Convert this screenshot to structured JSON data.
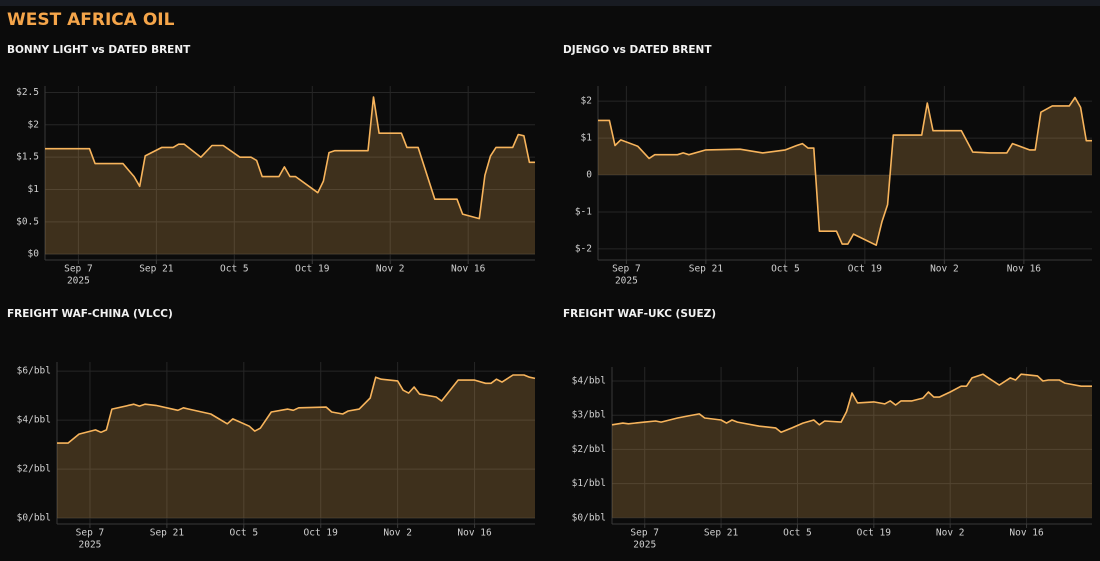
{
  "header": {
    "title": "WEST AFRICA OIL"
  },
  "chart_data": [
    {
      "type": "area",
      "title": "BONNY LIGHT vs DATED BRENT",
      "color": "#f7b45c",
      "grid": true,
      "x": [
        "2025-09-01",
        "2025-09-09",
        "2025-09-10",
        "2025-09-15",
        "2025-09-16",
        "2025-09-17",
        "2025-09-18",
        "2025-09-19",
        "2025-09-22",
        "2025-09-24",
        "2025-09-25",
        "2025-09-26",
        "2025-09-29",
        "2025-10-01",
        "2025-10-03",
        "2025-10-06",
        "2025-10-08",
        "2025-10-09",
        "2025-10-10",
        "2025-10-13",
        "2025-10-14",
        "2025-10-15",
        "2025-10-16",
        "2025-10-20",
        "2025-10-21",
        "2025-10-22",
        "2025-10-23",
        "2025-10-29",
        "2025-10-30",
        "2025-10-31",
        "2025-11-04",
        "2025-11-05",
        "2025-11-07",
        "2025-11-10",
        "2025-11-14",
        "2025-11-15",
        "2025-11-18",
        "2025-11-19",
        "2025-11-20",
        "2025-11-21",
        "2025-11-24",
        "2025-11-25",
        "2025-11-26",
        "2025-11-27",
        "2025-11-28"
      ],
      "values": [
        1.63,
        1.63,
        1.4,
        1.4,
        1.3,
        1.2,
        1.05,
        1.52,
        1.65,
        1.65,
        1.7,
        1.7,
        1.5,
        1.68,
        1.68,
        1.5,
        1.5,
        1.45,
        1.2,
        1.2,
        1.35,
        1.2,
        1.2,
        0.95,
        1.13,
        1.57,
        1.6,
        1.6,
        2.43,
        1.87,
        1.87,
        1.65,
        1.65,
        0.85,
        0.85,
        0.62,
        0.55,
        1.22,
        1.52,
        1.65,
        1.65,
        1.85,
        1.83,
        1.42,
        1.42
      ],
      "xlim": [
        "2025-09-01",
        "2025-11-28"
      ],
      "xticks": [
        {
          "value": "2025-09-07",
          "label": "Sep 7",
          "year": "2025"
        },
        {
          "value": "2025-09-21",
          "label": "Sep 21"
        },
        {
          "value": "2025-10-05",
          "label": "Oct 5"
        },
        {
          "value": "2025-10-19",
          "label": "Oct 19"
        },
        {
          "value": "2025-11-02",
          "label": "Nov 2"
        },
        {
          "value": "2025-11-16",
          "label": "Nov 16"
        }
      ],
      "ylim": [
        -0.09,
        2.6
      ],
      "yticks": [
        {
          "value": 0,
          "label": "$0"
        },
        {
          "value": 0.5,
          "label": "$0.5"
        },
        {
          "value": 1,
          "label": "$1"
        },
        {
          "value": 1.5,
          "label": "$1.5"
        },
        {
          "value": 2,
          "label": "$2"
        },
        {
          "value": 2.5,
          "label": "$2.5"
        }
      ]
    },
    {
      "type": "area",
      "title": "DJENGO vs DATED BRENT",
      "color": "#f7b45c",
      "grid": true,
      "x": [
        "2025-09-02",
        "2025-09-04",
        "2025-09-05",
        "2025-09-06",
        "2025-09-09",
        "2025-09-11",
        "2025-09-12",
        "2025-09-16",
        "2025-09-17",
        "2025-09-18",
        "2025-09-21",
        "2025-09-27",
        "2025-10-01",
        "2025-10-05",
        "2025-10-07",
        "2025-10-08",
        "2025-10-09",
        "2025-10-10",
        "2025-10-11",
        "2025-10-14",
        "2025-10-15",
        "2025-10-16",
        "2025-10-17",
        "2025-10-21",
        "2025-10-22",
        "2025-10-23",
        "2025-10-24",
        "2025-10-29",
        "2025-10-30",
        "2025-10-31",
        "2025-11-05",
        "2025-11-07",
        "2025-11-10",
        "2025-11-13",
        "2025-11-14",
        "2025-11-17",
        "2025-11-18",
        "2025-11-19",
        "2025-11-21",
        "2025-11-24",
        "2025-11-25",
        "2025-11-26",
        "2025-11-27",
        "2025-11-28"
      ],
      "values": [
        1.48,
        1.48,
        0.8,
        0.95,
        0.78,
        0.45,
        0.55,
        0.55,
        0.6,
        0.55,
        0.68,
        0.7,
        0.6,
        0.68,
        0.8,
        0.85,
        0.73,
        0.73,
        -1.52,
        -1.52,
        -1.87,
        -1.87,
        -1.6,
        -1.9,
        -1.27,
        -0.8,
        1.08,
        1.08,
        1.95,
        1.2,
        1.2,
        0.62,
        0.6,
        0.6,
        0.85,
        0.68,
        0.68,
        1.7,
        1.87,
        1.87,
        2.1,
        1.83,
        0.93,
        0.93
      ],
      "xlim": [
        "2025-09-02",
        "2025-11-28"
      ],
      "xticks": [
        {
          "value": "2025-09-07",
          "label": "Sep 7",
          "year": "2025"
        },
        {
          "value": "2025-09-21",
          "label": "Sep 21"
        },
        {
          "value": "2025-10-05",
          "label": "Oct 5"
        },
        {
          "value": "2025-10-19",
          "label": "Oct 19"
        },
        {
          "value": "2025-11-02",
          "label": "Nov 2"
        },
        {
          "value": "2025-11-16",
          "label": "Nov 16"
        }
      ],
      "ylim": [
        -2.3,
        2.41
      ],
      "yticks": [
        {
          "value": -2,
          "label": "$-2"
        },
        {
          "value": -1,
          "label": "$-1"
        },
        0,
        {
          "value": 1,
          "label": "$1"
        },
        {
          "value": 2,
          "label": "$2"
        }
      ]
    },
    {
      "type": "area",
      "title": "FREIGHT WAF-CHINA (VLCC)",
      "color": "#f7b45c",
      "grid": true,
      "x": [
        "2025-09-01",
        "2025-09-03",
        "2025-09-05",
        "2025-09-08",
        "2025-09-09",
        "2025-09-10",
        "2025-09-11",
        "2025-09-15",
        "2025-09-16",
        "2025-09-17",
        "2025-09-19",
        "2025-09-23",
        "2025-09-24",
        "2025-09-25",
        "2025-09-29",
        "2025-10-02",
        "2025-10-03",
        "2025-10-06",
        "2025-10-07",
        "2025-10-08",
        "2025-10-10",
        "2025-10-13",
        "2025-10-14",
        "2025-10-15",
        "2025-10-20",
        "2025-10-21",
        "2025-10-23",
        "2025-10-24",
        "2025-10-26",
        "2025-10-28",
        "2025-10-29",
        "2025-10-30",
        "2025-11-02",
        "2025-11-03",
        "2025-11-04",
        "2025-11-05",
        "2025-11-06",
        "2025-11-09",
        "2025-11-10",
        "2025-11-13",
        "2025-11-16",
        "2025-11-18",
        "2025-11-19",
        "2025-11-20",
        "2025-11-21",
        "2025-11-23",
        "2025-11-25",
        "2025-11-26",
        "2025-11-27"
      ],
      "values": [
        3.06,
        3.06,
        3.43,
        3.6,
        3.5,
        3.6,
        4.45,
        4.65,
        4.57,
        4.65,
        4.6,
        4.4,
        4.5,
        4.45,
        4.25,
        3.85,
        4.05,
        3.75,
        3.55,
        3.67,
        4.33,
        4.45,
        4.4,
        4.5,
        4.53,
        4.33,
        4.25,
        4.37,
        4.45,
        4.9,
        5.75,
        5.67,
        5.6,
        5.22,
        5.1,
        5.35,
        5.06,
        4.94,
        4.78,
        5.63,
        5.63,
        5.5,
        5.5,
        5.67,
        5.55,
        5.84,
        5.84,
        5.75,
        5.7
      ],
      "xlim": [
        "2025-09-01",
        "2025-11-27"
      ],
      "xticks": [
        {
          "value": "2025-09-07",
          "label": "Sep 7",
          "year": "2025"
        },
        {
          "value": "2025-09-21",
          "label": "Sep 21"
        },
        {
          "value": "2025-10-05",
          "label": "Oct 5"
        },
        {
          "value": "2025-10-19",
          "label": "Oct 19"
        },
        {
          "value": "2025-11-02",
          "label": "Nov 2"
        },
        {
          "value": "2025-11-16",
          "label": "Nov 16"
        }
      ],
      "ylim": [
        -0.24,
        6.37
      ],
      "yticks": [
        {
          "value": 0,
          "label": "$0/bbl"
        },
        {
          "value": 2,
          "label": "$2/bbl"
        },
        {
          "value": 4,
          "label": "$4/bbl"
        },
        {
          "value": 6,
          "label": "$6/bbl"
        }
      ]
    },
    {
      "type": "area",
      "title": "FREIGHT WAF-UKC (SUEZ)",
      "color": "#f7b45c",
      "grid": true,
      "x": [
        "2025-09-01",
        "2025-09-03",
        "2025-09-04",
        "2025-09-07",
        "2025-09-09",
        "2025-09-10",
        "2025-09-13",
        "2025-09-15",
        "2025-09-17",
        "2025-09-18",
        "2025-09-21",
        "2025-09-22",
        "2025-09-23",
        "2025-09-24",
        "2025-09-28",
        "2025-10-01",
        "2025-10-02",
        "2025-10-04",
        "2025-10-06",
        "2025-10-08",
        "2025-10-09",
        "2025-10-10",
        "2025-10-13",
        "2025-10-14",
        "2025-10-15",
        "2025-10-16",
        "2025-10-19",
        "2025-10-21",
        "2025-10-22",
        "2025-10-23",
        "2025-10-24",
        "2025-10-26",
        "2025-10-28",
        "2025-10-29",
        "2025-10-30",
        "2025-10-31",
        "2025-11-02",
        "2025-11-04",
        "2025-11-05",
        "2025-11-06",
        "2025-11-08",
        "2025-11-09",
        "2025-11-11",
        "2025-11-13",
        "2025-11-14",
        "2025-11-15",
        "2025-11-18",
        "2025-11-19",
        "2025-11-20",
        "2025-11-22",
        "2025-11-23",
        "2025-11-24",
        "2025-11-26",
        "2025-11-28"
      ],
      "values": [
        2.72,
        2.77,
        2.75,
        2.8,
        2.83,
        2.8,
        2.92,
        2.98,
        3.04,
        2.92,
        2.86,
        2.77,
        2.86,
        2.8,
        2.68,
        2.63,
        2.5,
        2.63,
        2.77,
        2.86,
        2.72,
        2.83,
        2.8,
        3.1,
        3.65,
        3.36,
        3.39,
        3.33,
        3.42,
        3.3,
        3.42,
        3.42,
        3.5,
        3.68,
        3.53,
        3.53,
        3.68,
        3.85,
        3.85,
        4.09,
        4.2,
        4.09,
        3.88,
        4.09,
        4.03,
        4.2,
        4.15,
        4.0,
        4.03,
        4.03,
        3.94,
        3.91,
        3.85,
        3.85
      ],
      "xlim": [
        "2025-09-01",
        "2025-11-28"
      ],
      "xticks": [
        {
          "value": "2025-09-07",
          "label": "Sep 7",
          "year": "2025"
        },
        {
          "value": "2025-09-21",
          "label": "Sep 21"
        },
        {
          "value": "2025-10-05",
          "label": "Oct 5"
        },
        {
          "value": "2025-10-19",
          "label": "Oct 19"
        },
        {
          "value": "2025-11-02",
          "label": "Nov 2"
        },
        {
          "value": "2025-11-16",
          "label": "Nov 16"
        }
      ],
      "ylim": [
        -0.18,
        4.41
      ],
      "yticks": [
        {
          "value": 0,
          "label": "$0/bbl"
        },
        {
          "value": 1,
          "label": "$1/bbl"
        },
        {
          "value": 2,
          "label": "$2/bbl"
        },
        {
          "value": 3,
          "label": "$3/bbl"
        },
        {
          "value": 4,
          "label": "$4/bbl"
        }
      ]
    }
  ]
}
